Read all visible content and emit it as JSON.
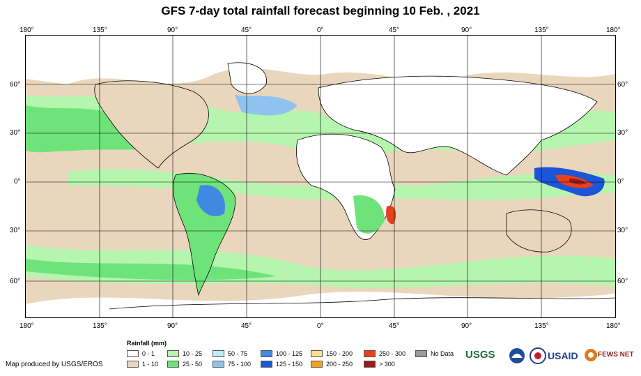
{
  "title": "GFS 7-day total rainfall forecast beginning 10 Feb. , 2021",
  "longitudes": [
    "180°",
    "135°",
    "90°",
    "45°",
    "0°",
    "45°",
    "90°",
    "135°",
    "180°"
  ],
  "latitudes": [
    "60°",
    "30°",
    "0°",
    "30°",
    "60°"
  ],
  "legend": {
    "title": "Rainfall (mm)",
    "items": [
      {
        "label": "0 - 1",
        "color": "#ffffff"
      },
      {
        "label": "1 - 10",
        "color": "#e9d6bd"
      },
      {
        "label": "10 - 25",
        "color": "#b5f5ae"
      },
      {
        "label": "25 - 50",
        "color": "#6ee37a"
      },
      {
        "label": "50 - 75",
        "color": "#bdeef7"
      },
      {
        "label": "75 - 100",
        "color": "#8ec3f0"
      },
      {
        "label": "100 - 125",
        "color": "#3f8ae0"
      },
      {
        "label": "125 - 150",
        "color": "#1c55d8"
      },
      {
        "label": "150 - 200",
        "color": "#ffe08a"
      },
      {
        "label": "200 - 250",
        "color": "#f7a31d"
      },
      {
        "label": "250 - 300",
        "color": "#e8401e"
      },
      {
        "label": "> 300",
        "color": "#9b1c1c"
      },
      {
        "label": "No Data",
        "color": "#9a9a9a"
      }
    ]
  },
  "credit": "Map produced by USGS/EROS",
  "logos": {
    "usgs": "USGS",
    "usaid": "USAID",
    "fews": "FEWS NET"
  }
}
